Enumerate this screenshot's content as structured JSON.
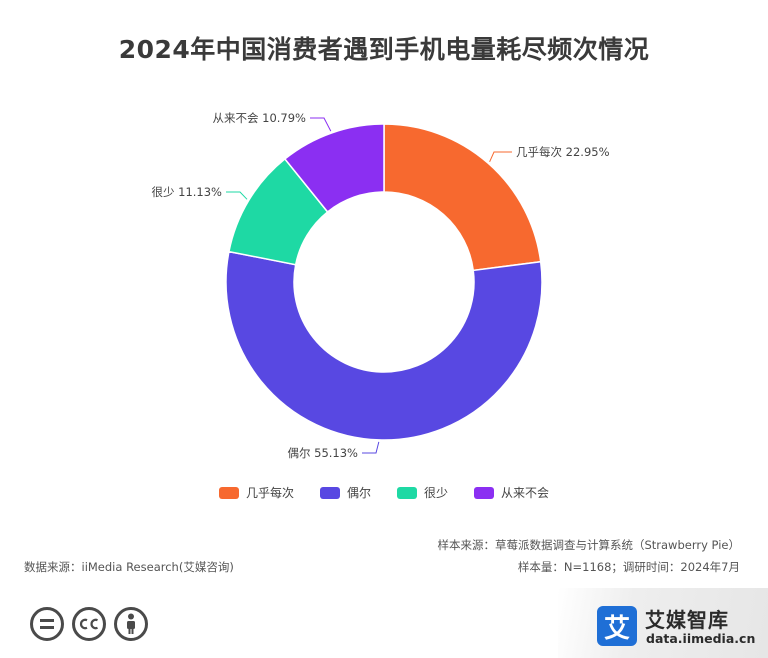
{
  "chart_data": {
    "type": "pie",
    "title": "2024年中国消费者遇到手机电量耗尽频次情况",
    "categories": [
      "几乎每次",
      "偶尔",
      "很少",
      "从来不会"
    ],
    "values": [
      22.95,
      55.13,
      11.13,
      10.79
    ],
    "unit": "%",
    "donut": true,
    "data_labels": [
      "几乎每次 22.95%",
      "偶尔 55.13%",
      "很少 11.13%",
      "从来不会 10.79%"
    ],
    "colors": [
      "#f7692f",
      "#5848e2",
      "#1ed9a4",
      "#8b2ff2"
    ],
    "legend_position": "bottom"
  },
  "source": "数据来源：iiMedia Research(艾媒咨询)",
  "sample_source": "样本来源：草莓派数据调查与计算系统（Strawberry Pie）",
  "sample_info": "样本量：N=1168；调研时间：2024年7月",
  "cc_icons": [
    "equals-icon",
    "cc-icon",
    "person-icon"
  ],
  "brand": {
    "logo_char": "艾",
    "name": "艾媒智库",
    "url": "data.iimedia.cn"
  }
}
